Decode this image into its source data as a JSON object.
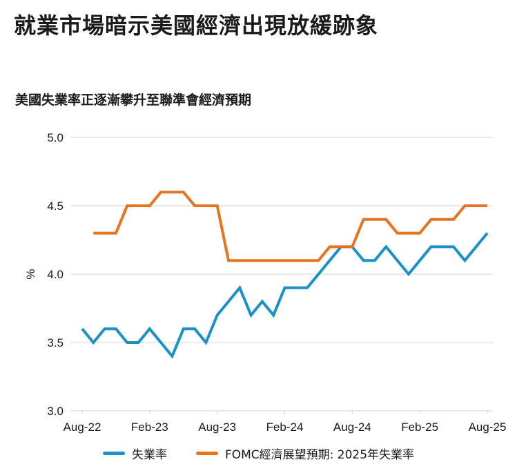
{
  "title": "就業市場暗示美國經濟出現放緩跡象",
  "chart_data": {
    "type": "line",
    "title": "美國失業率正逐漸攀升至聯準會經濟預期",
    "xlabel": "",
    "ylabel": "%",
    "ylim": [
      3.0,
      5.0
    ],
    "yticks": [
      "5.0",
      "4.5",
      "4.0",
      "3.5",
      "3.0"
    ],
    "x_tick_labels": [
      "Aug-22",
      "Feb-23",
      "Aug-23",
      "Feb-24",
      "Aug-24",
      "Feb-25",
      "Aug-25"
    ],
    "x": [
      "Aug-22",
      "Sep-22",
      "Oct-22",
      "Nov-22",
      "Dec-22",
      "Jan-23",
      "Feb-23",
      "Mar-23",
      "Apr-23",
      "May-23",
      "Jun-23",
      "Jul-23",
      "Aug-23",
      "Sep-23",
      "Oct-23",
      "Nov-23",
      "Dec-23",
      "Jan-24",
      "Feb-24",
      "Mar-24",
      "Apr-24",
      "May-24",
      "Jun-24",
      "Jul-24",
      "Aug-24",
      "Sep-24",
      "Oct-24",
      "Nov-24",
      "Dec-24",
      "Jan-25",
      "Feb-25",
      "Mar-25",
      "Apr-25",
      "May-25",
      "Jun-25",
      "Jul-25",
      "Aug-25"
    ],
    "grid": true,
    "legend_position": "bottom",
    "series": [
      {
        "name": "失業率",
        "color": "#1a8fc9",
        "values": [
          3.6,
          3.5,
          3.6,
          3.6,
          3.5,
          3.5,
          3.6,
          3.5,
          3.4,
          3.6,
          3.6,
          3.5,
          3.7,
          3.8,
          3.9,
          3.7,
          3.8,
          3.7,
          3.9,
          3.9,
          3.9,
          4.0,
          4.1,
          4.2,
          4.2,
          4.1,
          4.1,
          4.2,
          4.1,
          4.0,
          4.1,
          4.2,
          4.2,
          4.2,
          4.1,
          4.2,
          4.3
        ]
      },
      {
        "name": "FOMC經濟展望預期: 2025年失業率",
        "color": "#e8731f",
        "values": [
          null,
          4.3,
          4.3,
          4.3,
          4.5,
          4.5,
          4.5,
          4.6,
          4.6,
          4.6,
          4.5,
          4.5,
          4.5,
          4.1,
          4.1,
          4.1,
          4.1,
          4.1,
          4.1,
          4.1,
          4.1,
          4.1,
          4.2,
          4.2,
          4.2,
          4.4,
          4.4,
          4.4,
          4.3,
          4.3,
          4.3,
          4.4,
          4.4,
          4.4,
          4.5,
          4.5,
          4.5
        ]
      }
    ]
  }
}
